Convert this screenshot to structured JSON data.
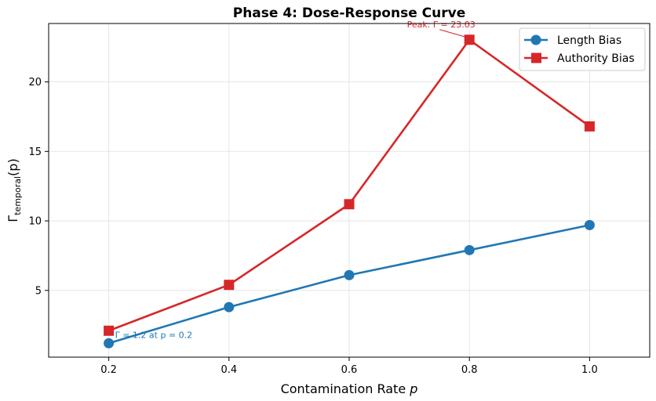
{
  "chart_data": {
    "type": "line",
    "title": "Phase 4: Dose-Response Curve",
    "xlabel": "Contamination Rate p",
    "ylabel": "Γtemporal(p)",
    "xlim": [
      0.1,
      1.1
    ],
    "ylim": [
      0.2,
      24.2
    ],
    "xticks": [
      0.2,
      0.4,
      0.6,
      0.8,
      1.0
    ],
    "xtick_labels": [
      "0.2",
      "0.4",
      "0.6",
      "0.8",
      "1.0"
    ],
    "yticks": [
      5,
      10,
      15,
      20
    ],
    "ytick_labels": [
      "5",
      "10",
      "15",
      "20"
    ],
    "grid": true,
    "legend_position": "top-right",
    "series": [
      {
        "name": "Length Bias",
        "color": "#1f77b4",
        "marker": "circle",
        "x": [
          0.2,
          0.4,
          0.6,
          0.8,
          1.0
        ],
        "y": [
          1.2,
          3.8,
          6.1,
          7.9,
          9.7
        ]
      },
      {
        "name": "Authority Bias",
        "color": "#d62728",
        "marker": "square",
        "x": [
          0.2,
          0.4,
          0.6,
          0.8,
          1.0
        ],
        "y": [
          2.1,
          5.4,
          11.2,
          23.03,
          16.8
        ]
      }
    ],
    "annotations": [
      {
        "text": "Peak: Γ = 23.03",
        "x": 0.8,
        "y": 23.03,
        "color": "#d62728"
      },
      {
        "text": "Γ = 1.2 at p = 0.2",
        "x": 0.2,
        "y": 1.2,
        "color": "#1f77b4"
      }
    ]
  }
}
